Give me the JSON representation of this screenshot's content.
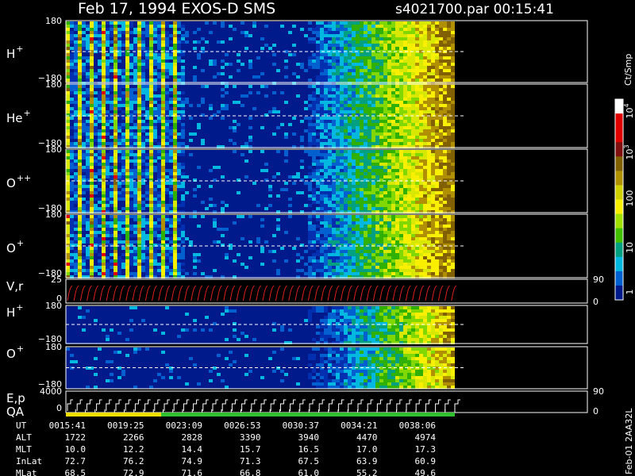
{
  "header": {
    "title": "Feb 17, 1994   EXOS-D SMS",
    "file": "s4021700.par  00:15:41"
  },
  "panels": [
    {
      "label": "H",
      "sup": "+",
      "ticks": [
        "180",
        "−180"
      ]
    },
    {
      "label": "He",
      "sup": "+",
      "ticks": [
        "180",
        "−180"
      ]
    },
    {
      "label": "O",
      "sup": "++",
      "ticks": [
        "180",
        "−180"
      ]
    },
    {
      "label": "O",
      "sup": "+",
      "ticks": [
        "180",
        "−180"
      ]
    },
    {
      "label": "V,r",
      "sup": "",
      "ticks": [
        "25",
        "0"
      ],
      "right_ticks": [
        "90",
        "0"
      ]
    },
    {
      "label": "H",
      "sup": "+",
      "ticks": [
        "180",
        "−180"
      ]
    },
    {
      "label": "O",
      "sup": "+",
      "ticks": [
        "180",
        "−180"
      ]
    },
    {
      "label": "E,p",
      "sup": "",
      "ticks": [
        "4000",
        "0"
      ],
      "right_ticks": [
        "90",
        "0"
      ]
    }
  ],
  "qa": "QA",
  "colorbar": {
    "label": "Ct/Smp",
    "ticks": [
      {
        "base": "10",
        "exp": "4"
      },
      {
        "base": "10",
        "exp": "3"
      },
      {
        "base": "100",
        "exp": ""
      },
      {
        "base": "10",
        "exp": ""
      },
      {
        "base": "1",
        "exp": ""
      }
    ]
  },
  "table": {
    "rows": [
      {
        "label": "UT",
        "cells": [
          "0015:41",
          "0019:25",
          "0023:09",
          "0026:53",
          "0030:37",
          "0034:21",
          "0038:06"
        ]
      },
      {
        "label": "ALT",
        "cells": [
          "1722",
          "2266",
          "2828",
          "3390",
          "3940",
          "4470",
          "4974"
        ]
      },
      {
        "label": "MLT",
        "cells": [
          "10.0",
          "12.2",
          "14.4",
          "15.7",
          "16.5",
          "17.0",
          "17.3"
        ]
      },
      {
        "label": "InLat",
        "cells": [
          "72.7",
          "76.2",
          "74.9",
          "71.3",
          "67.5",
          "63.9",
          "60.9"
        ]
      },
      {
        "label": "MLat",
        "cells": [
          "68.5",
          "72.9",
          "71.6",
          "66.8",
          "61.0",
          "55.2",
          "49.6"
        ]
      }
    ]
  },
  "footer": "Feb-01 2AA32L"
}
